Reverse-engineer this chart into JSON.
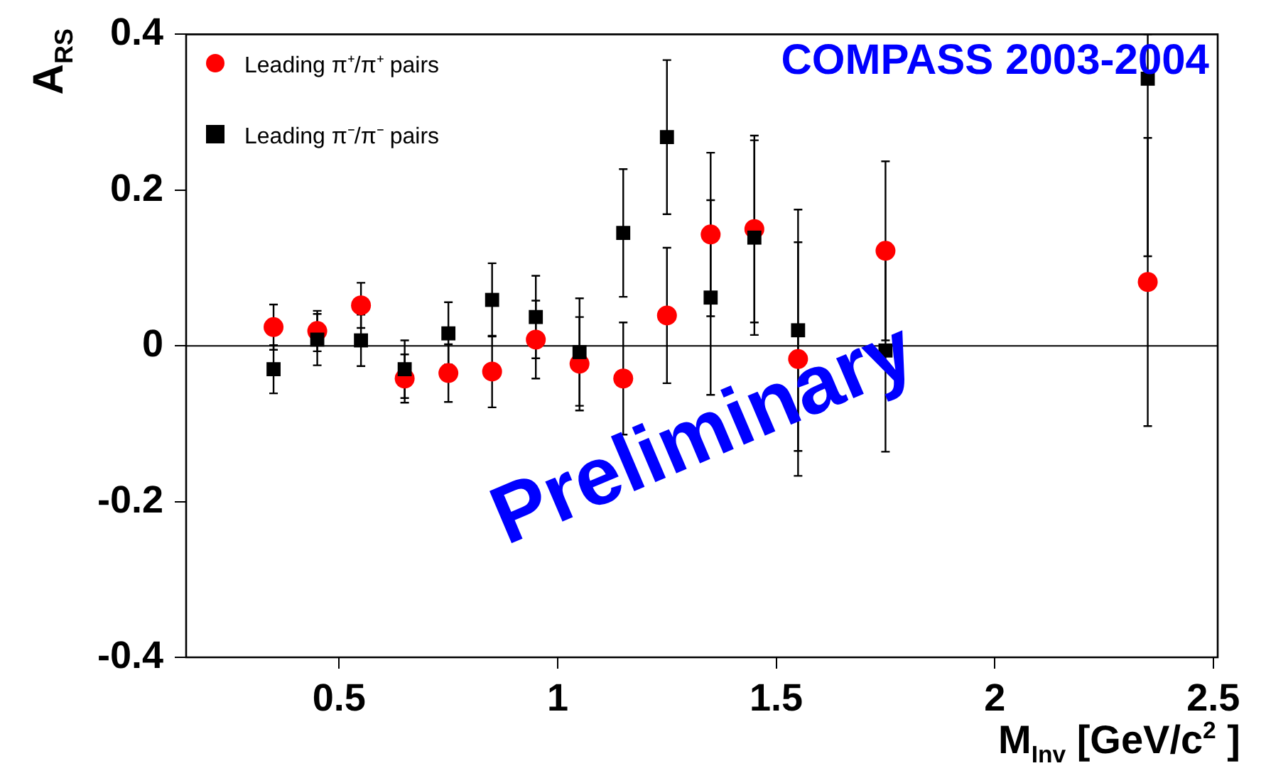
{
  "chart_data": {
    "type": "scatter",
    "xlabel": "M$_{Inv}$ [GeV/c$^{2}$ ]",
    "ylabel": "A$_{RS}$",
    "annotations": [
      "COMPASS 2003-2004",
      "Preliminary"
    ],
    "x": [
      0.35,
      0.45,
      0.55,
      0.65,
      0.75,
      0.85,
      0.95,
      1.05,
      1.15,
      1.25,
      1.35,
      1.45,
      1.55,
      1.75,
      2.35
    ],
    "series": [
      {
        "name": "Leading π⁺/π⁺ pairs",
        "color": "#ff0000",
        "marker": "circle",
        "values": [
          0.024,
          0.019,
          0.052,
          -0.042,
          -0.035,
          -0.033,
          0.008,
          -0.023,
          -0.042,
          0.039,
          0.143,
          0.15,
          -0.017,
          0.122,
          0.082
        ],
        "errors": [
          0.029,
          0.026,
          0.029,
          0.031,
          0.037,
          0.046,
          0.05,
          0.06,
          0.072,
          0.087,
          0.105,
          0.12,
          0.15,
          0.115,
          0.185
        ]
      },
      {
        "name": "Leading π⁻/π⁻ pairs",
        "color": "#000000",
        "marker": "square",
        "values": [
          -0.03,
          0.008,
          0.007,
          -0.03,
          0.016,
          0.059,
          0.037,
          -0.008,
          0.145,
          0.268,
          0.062,
          0.139,
          0.02,
          -0.006,
          0.343
        ],
        "errors": [
          0.031,
          0.033,
          0.033,
          0.037,
          0.04,
          0.047,
          0.053,
          0.069,
          0.082,
          0.099,
          0.125,
          0.125,
          0.155,
          0.13,
          [
            0.115,
            0.4
          ]
        ]
      }
    ],
    "xlim": [
      0.15,
      2.51
    ],
    "ylim": [
      -0.4,
      0.4
    ],
    "xticks": [
      0.5,
      1,
      1.5,
      2,
      2.5
    ],
    "yticks": [
      -0.4,
      -0.2,
      0,
      0.2,
      0.4
    ],
    "ref_lines": [
      {
        "axis": "y",
        "value": 0,
        "color": "#000000"
      }
    ],
    "grid": false,
    "legend": "top left"
  }
}
